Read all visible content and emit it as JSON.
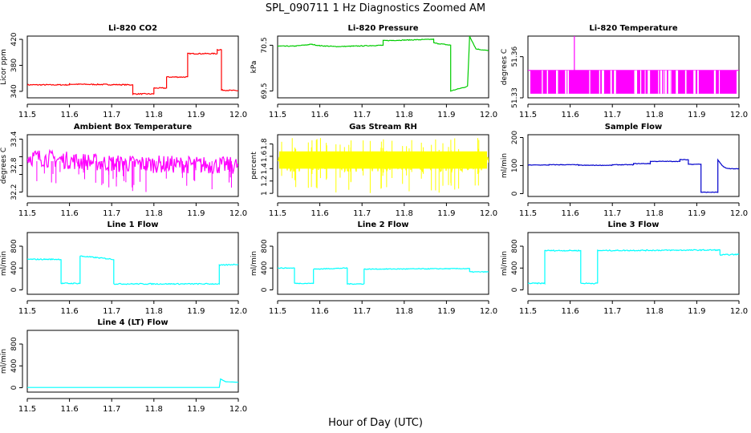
{
  "page": {
    "title": "SPL_090711  1 Hz Diagnostics Zoomed AM",
    "xlabel": "Hour of Day (UTC)"
  },
  "chart_data": [
    {
      "type": "line",
      "title": "Li-820 CO2",
      "ylabel": "Licor ppm",
      "color": "#ff0000",
      "xlim": [
        11.5,
        12.0
      ],
      "ylim": [
        330,
        425
      ],
      "xticks": [
        "11.5",
        "11.6",
        "11.7",
        "11.8",
        "11.9",
        "12.0"
      ],
      "yticks": [
        340,
        380,
        420
      ],
      "noise": 0.8,
      "series": [
        {
          "name": "CO2",
          "x": [
            11.5,
            11.6,
            11.6,
            11.75,
            11.75,
            11.8,
            11.8,
            11.83,
            11.83,
            11.88,
            11.88,
            11.95,
            11.95,
            11.96,
            11.96,
            12.0
          ],
          "y": [
            350,
            350,
            351,
            350,
            336,
            336,
            345,
            345,
            362,
            362,
            398,
            398,
            404,
            404,
            342,
            341
          ]
        }
      ]
    },
    {
      "type": "line",
      "title": "Li-820 Pressure",
      "ylabel": "kPa",
      "color": "#00cc00",
      "xlim": [
        11.5,
        12.0
      ],
      "ylim": [
        69.35,
        70.7
      ],
      "xticks": [
        "11.5",
        "11.6",
        "11.7",
        "11.8",
        "11.9",
        "12.0"
      ],
      "yticks": [
        69.5,
        70.5
      ],
      "noise": 0.008,
      "series": [
        {
          "name": "Pressure",
          "x": [
            11.5,
            11.54,
            11.58,
            11.6,
            11.64,
            11.68,
            11.75,
            11.75,
            11.87,
            11.87,
            11.91,
            11.91,
            11.95,
            11.955,
            11.97,
            12.0
          ],
          "y": [
            70.48,
            70.48,
            70.52,
            70.49,
            70.47,
            70.48,
            70.5,
            70.6,
            70.63,
            70.55,
            70.5,
            69.5,
            69.6,
            70.7,
            70.42,
            70.38
          ]
        }
      ]
    },
    {
      "type": "line",
      "title": "Li-820 Temperature",
      "ylabel": "degrees C",
      "color": "#ff00ff",
      "xlim": [
        11.5,
        12.0
      ],
      "ylim": [
        51.33,
        51.375
      ],
      "xticks": [
        "11.5",
        "11.6",
        "11.7",
        "11.8",
        "11.9",
        "12.0"
      ],
      "yticks": [
        51.33,
        51.36
      ],
      "yticklabels": [
        "51.33",
        "51.36"
      ],
      "noise": 0,
      "series": [
        {
          "name": "Temperature",
          "x": [
            11.5,
            12.0
          ],
          "y": [
            51.35,
            51.35
          ]
        }
      ]
    },
    {
      "type": "line",
      "title": "Ambient Box Temperature",
      "ylabel": "degrees C",
      "color": "#ff00ff",
      "xlim": [
        11.5,
        12.0
      ],
      "ylim": [
        32.1,
        33.5
      ],
      "xticks": [
        "11.5",
        "11.6",
        "11.7",
        "11.8",
        "11.9",
        "12.0"
      ],
      "yticks": [
        32.2,
        32.6,
        32.8,
        33.0,
        33.4
      ],
      "yticklabels": [
        "32.2",
        "",
        "32.8",
        "",
        "33.4"
      ],
      "noise": 0.2,
      "series": [
        {
          "name": "Ambient",
          "x": [
            11.5,
            11.62,
            11.7,
            12.0
          ],
          "y": [
            33.0,
            32.9,
            32.85,
            32.8
          ]
        }
      ]
    },
    {
      "type": "line",
      "title": "Gas Stream RH",
      "ylabel": "percent",
      "color": "#ffff00",
      "xlim": [
        11.5,
        12.0
      ],
      "ylim": [
        0.95,
        1.95
      ],
      "xticks": [
        "11.5",
        "11.6",
        "11.7",
        "11.8",
        "11.9",
        "12.0"
      ],
      "yticks": [
        1.0,
        1.2,
        1.4,
        1.6,
        1.8
      ],
      "noise": 0.15,
      "series": [
        {
          "name": "RH",
          "x": [
            11.5,
            12.0
          ],
          "y": [
            1.5,
            1.5
          ]
        }
      ]
    },
    {
      "type": "line",
      "title": "Sample Flow",
      "ylabel": "ml/min",
      "color": "#0000cc",
      "xlim": [
        11.5,
        12.0
      ],
      "ylim": [
        -10,
        210
      ],
      "xticks": [
        "11.5",
        "11.6",
        "11.7",
        "11.8",
        "11.9",
        "12.0"
      ],
      "yticks": [
        0,
        100,
        200
      ],
      "noise": 1,
      "series": [
        {
          "name": "Sample",
          "x": [
            11.5,
            11.55,
            11.55,
            11.62,
            11.62,
            11.7,
            11.7,
            11.75,
            11.75,
            11.79,
            11.79,
            11.86,
            11.86,
            11.88,
            11.88,
            11.91,
            11.91,
            11.95,
            11.95,
            11.96,
            11.97,
            12.0
          ],
          "y": [
            102,
            102,
            103,
            103,
            101,
            101,
            103,
            103,
            107,
            107,
            115,
            115,
            121,
            121,
            105,
            105,
            5,
            5,
            120,
            100,
            90,
            88
          ]
        }
      ]
    },
    {
      "type": "line",
      "title": "Line 1 Flow",
      "ylabel": "ml/min",
      "color": "#00ffff",
      "xlim": [
        11.5,
        12.0
      ],
      "ylim": [
        -80,
        1050
      ],
      "xticks": [
        "11.5",
        "11.6",
        "11.7",
        "11.8",
        "11.9",
        "12.0"
      ],
      "yticks": [
        0,
        400,
        800
      ],
      "noise": 10,
      "series": [
        {
          "name": "Line 1",
          "x": [
            11.5,
            11.58,
            11.58,
            11.625,
            11.625,
            11.705,
            11.705,
            11.955,
            11.955,
            12.0
          ],
          "y": [
            560,
            560,
            120,
            120,
            620,
            560,
            110,
            110,
            450,
            470
          ]
        }
      ]
    },
    {
      "type": "line",
      "title": "Line 2 Flow",
      "ylabel": "ml/min",
      "color": "#00ffff",
      "xlim": [
        11.5,
        12.0
      ],
      "ylim": [
        -80,
        1050
      ],
      "xticks": [
        "11.5",
        "11.6",
        "11.7",
        "11.8",
        "11.9",
        "12.0"
      ],
      "yticks": [
        0,
        400,
        800
      ],
      "noise": 7,
      "series": [
        {
          "name": "Line 2",
          "x": [
            11.5,
            11.54,
            11.54,
            11.585,
            11.585,
            11.665,
            11.665,
            11.705,
            11.705,
            11.955,
            11.955,
            12.0
          ],
          "y": [
            400,
            400,
            120,
            120,
            380,
            400,
            110,
            110,
            380,
            390,
            330,
            330
          ]
        }
      ]
    },
    {
      "type": "line",
      "title": "Line 3 Flow",
      "ylabel": "ml/min",
      "color": "#00ffff",
      "xlim": [
        11.5,
        12.0
      ],
      "ylim": [
        -80,
        1050
      ],
      "xticks": [
        "11.5",
        "11.6",
        "11.7",
        "11.8",
        "11.9",
        "12.0"
      ],
      "yticks": [
        0,
        400,
        800
      ],
      "noise": 10,
      "series": [
        {
          "name": "Line 3",
          "x": [
            11.5,
            11.54,
            11.54,
            11.625,
            11.625,
            11.665,
            11.665,
            11.955,
            11.955,
            12.0
          ],
          "y": [
            120,
            120,
            720,
            720,
            120,
            120,
            720,
            730,
            640,
            650
          ]
        }
      ]
    },
    {
      "type": "line",
      "title": "Line 4 (LT) Flow",
      "ylabel": "ml/min",
      "color": "#00ffff",
      "xlim": [
        11.5,
        12.0
      ],
      "ylim": [
        -80,
        1050
      ],
      "xticks": [
        "11.5",
        "11.6",
        "11.7",
        "11.8",
        "11.9",
        "12.0"
      ],
      "yticks": [
        0,
        400,
        800
      ],
      "noise": 0,
      "series": [
        {
          "name": "Line 4",
          "x": [
            11.5,
            11.955,
            11.958,
            11.97,
            12.0
          ],
          "y": [
            5,
            5,
            160,
            110,
            100
          ]
        }
      ]
    }
  ]
}
